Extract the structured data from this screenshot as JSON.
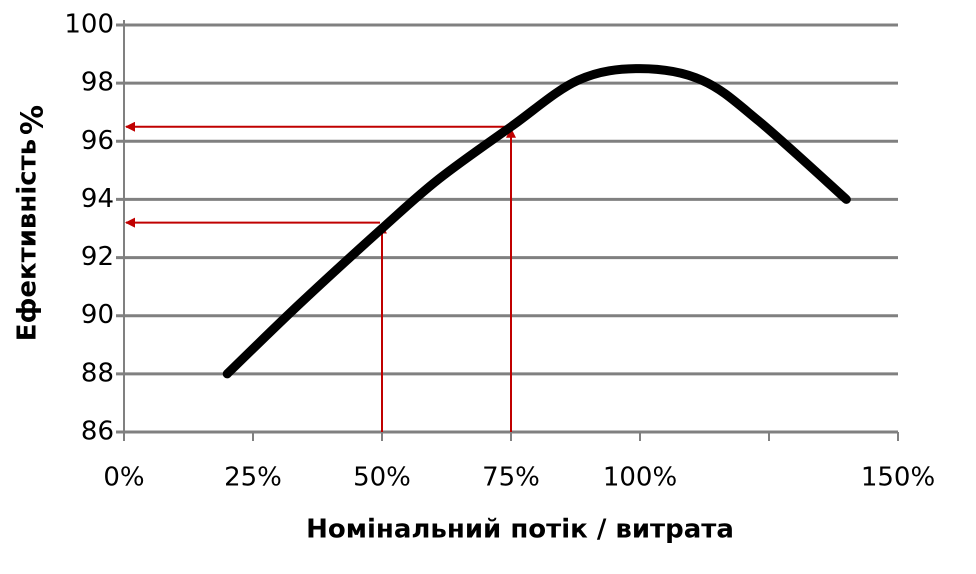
{
  "chart_data": {
    "type": "line",
    "xlabel": "Номінальний потік / витрата",
    "ylabel": "Ефективність",
    "ylabel_unit": "%",
    "x": [
      20,
      34,
      50,
      61,
      75,
      88,
      100,
      112,
      123,
      140
    ],
    "series": [
      {
        "color": "#000000",
        "values": [
          88,
          90.4,
          93,
          94.7,
          96.5,
          98.1,
          98.5,
          98.1,
          96.7,
          94
        ]
      }
    ],
    "xlim": [
      0,
      150
    ],
    "xticks": [
      {
        "value": 0,
        "label": "0%"
      },
      {
        "value": 25,
        "label": "25%"
      },
      {
        "value": 50,
        "label": "50%"
      },
      {
        "value": 75,
        "label": "75%"
      },
      {
        "value": 100,
        "label": "100%"
      },
      {
        "value": 125,
        "label": null
      },
      {
        "value": 150,
        "label": "150%"
      }
    ],
    "ylim": [
      86,
      100
    ],
    "yticks": [
      86,
      88,
      90,
      92,
      94,
      96,
      98,
      100
    ],
    "grid": true,
    "grid_color": "#808080",
    "reference_points": [
      {
        "x": 50,
        "y": 93.2
      },
      {
        "x": 75,
        "y": 96.5
      }
    ],
    "reference_color": "#c00000"
  }
}
